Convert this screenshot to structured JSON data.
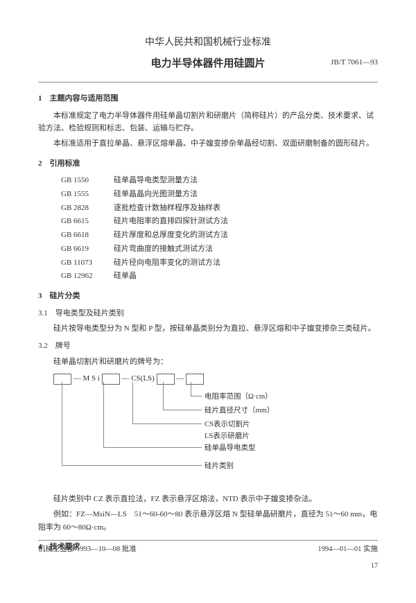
{
  "header": {
    "org": "中华人民共和国机械行业标准",
    "title": "电力半导体器件用硅圆片",
    "code": "JB/T 7061—93"
  },
  "s1": {
    "h": "1　主题内容与适用范围",
    "p1": "本标准规定了电力半导体器件用硅单晶切割片和研磨片（简称硅片）的产品分类、技术要求、试验方法、检验规则和标志、包装、运输与贮存。",
    "p2": "本标准适用于直拉单晶、悬浮区熔单晶、中子嬗变掺杂单晶经切割、双面研磨制备的圆形硅片。"
  },
  "s2": {
    "h": "2　引用标准",
    "refs": [
      [
        "GB 1550",
        "硅单晶导电类型测量方法"
      ],
      [
        "GB 1555",
        "硅单晶晶向光图测量方法"
      ],
      [
        "GB 2828",
        "逐批检查计数抽样程序及抽样表"
      ],
      [
        "GB 6615",
        "硅片电阻率的直排四探针测试方法"
      ],
      [
        "GB 6618",
        "硅片厚度和总厚度变化的测试方法"
      ],
      [
        "GB 6619",
        "硅片弯曲度的接触式测试方法"
      ],
      [
        "GB 11073",
        "硅片径向电阻率变化的测试方法"
      ],
      [
        "GB 12962",
        "硅单晶"
      ]
    ]
  },
  "s3": {
    "h": "3　硅片分类",
    "s31": "3.1　导电类型及硅片类别",
    "p31": "硅片按导电类型分为 N 型和 P 型，按硅单晶类别分为直拉、悬浮区熔和中子嬗变掺杂三类硅片。",
    "s32": "3.2　牌号",
    "p32": "硅单晶切割片和研磨片的牌号为：",
    "dlabels": [
      "— M S i",
      "— CS(LS)",
      "—"
    ],
    "notes": [
      "电阻率范围（Ω·cm）",
      "硅片直径尺寸（mm）",
      "CS表示切割片",
      "LS表示研磨片",
      "硅单晶导电类型",
      "硅片类别"
    ]
  },
  "post": {
    "p1": "硅片类别中 CZ 表示直拉法，FZ 表示悬浮区熔法，NTD 表示中子嬗变掺杂法。",
    "p2": "例如：FZ—MsiN—LS　51～60-60～80 表示悬浮区熔 N 型硅单晶研磨片，直径为 51～60 mm，电阻率为 60～80Ω·cm。"
  },
  "s4": {
    "h": "4　技术要求"
  },
  "footer": {
    "left": "机械工业部 1993—10—08 批准",
    "right": "1994—01—01 实施",
    "page": "17"
  }
}
